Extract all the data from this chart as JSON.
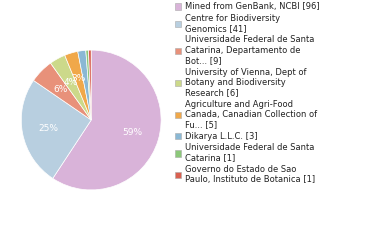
{
  "labels": [
    "Mined from GenBank, NCBI [96]",
    "Centre for Biodiversity\nGenomics [41]",
    "Universidade Federal de Santa\nCatarina, Departamento de\nBot... [9]",
    "University of Vienna, Dept of\nBotany and Biodiversity\nResearch [6]",
    "Agriculture and Agri-Food\nCanada, Canadian Collection of\nFu... [5]",
    "Dikarya L.L.C. [3]",
    "Universidade Federal de Santa\nCatarina [1]",
    "Governo do Estado de Sao\nPaulo, Instituto de Botanica [1]"
  ],
  "values": [
    96,
    41,
    9,
    6,
    5,
    3,
    1,
    1
  ],
  "colors": [
    "#d9b3d9",
    "#b8cfe0",
    "#e8917a",
    "#ccd98a",
    "#f0a84a",
    "#8ab8d4",
    "#8cc87a",
    "#d96050"
  ],
  "background_color": "#ffffff",
  "text_color": "#222222",
  "fontsize": 6.5,
  "legend_fontsize": 6.0
}
